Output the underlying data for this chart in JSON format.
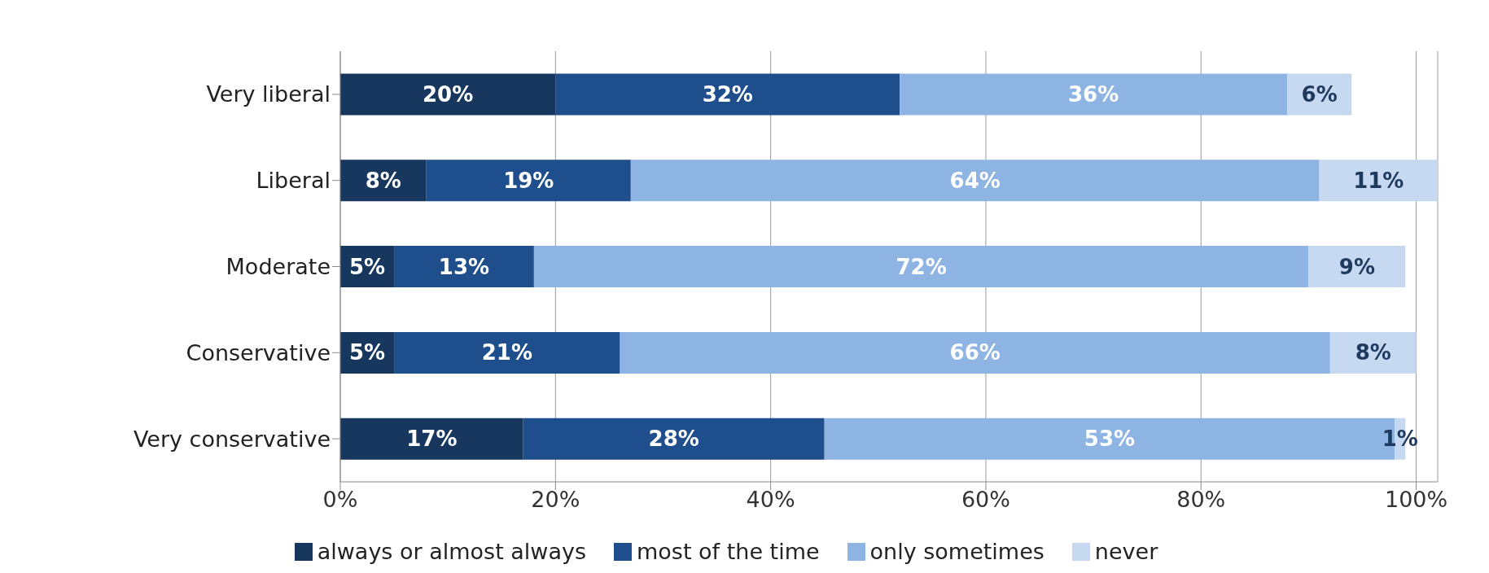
{
  "chart_data": {
    "type": "bar",
    "orientation": "horizontal",
    "stacked": true,
    "categories": [
      "Very liberal",
      "Liberal",
      "Moderate",
      "Conservative",
      "Very conservative"
    ],
    "series": [
      {
        "name": "always or almost always",
        "color": "#17375e",
        "values": [
          20,
          8,
          5,
          5,
          17
        ],
        "value_labels": [
          "20%",
          "8%",
          "5%",
          "5%",
          "17%"
        ]
      },
      {
        "name": "most of the time",
        "color": "#1f4e8c",
        "values": [
          32,
          19,
          13,
          21,
          28
        ],
        "value_labels": [
          "32%",
          "19%",
          "13%",
          "21%",
          "28%"
        ]
      },
      {
        "name": "only sometimes",
        "color": "#8db4e2",
        "values": [
          36,
          64,
          72,
          66,
          53
        ],
        "value_labels": [
          "36%",
          "64%",
          "72%",
          "66%",
          "53%"
        ]
      },
      {
        "name": "never",
        "color": "#c6d9f1",
        "values": [
          6,
          11,
          9,
          8,
          1
        ],
        "value_labels": [
          "6%",
          "11%",
          "9%",
          "8%",
          "1%"
        ]
      }
    ],
    "xlim": [
      0,
      102
    ],
    "xticks": [
      {
        "value": 0,
        "label": "0%"
      },
      {
        "value": 20,
        "label": "20%"
      },
      {
        "value": 40,
        "label": "40%"
      },
      {
        "value": 60,
        "label": "60%"
      },
      {
        "value": 80,
        "label": "80%"
      },
      {
        "value": 100,
        "label": "100%"
      }
    ],
    "grid": "x",
    "legend": "bottom"
  }
}
